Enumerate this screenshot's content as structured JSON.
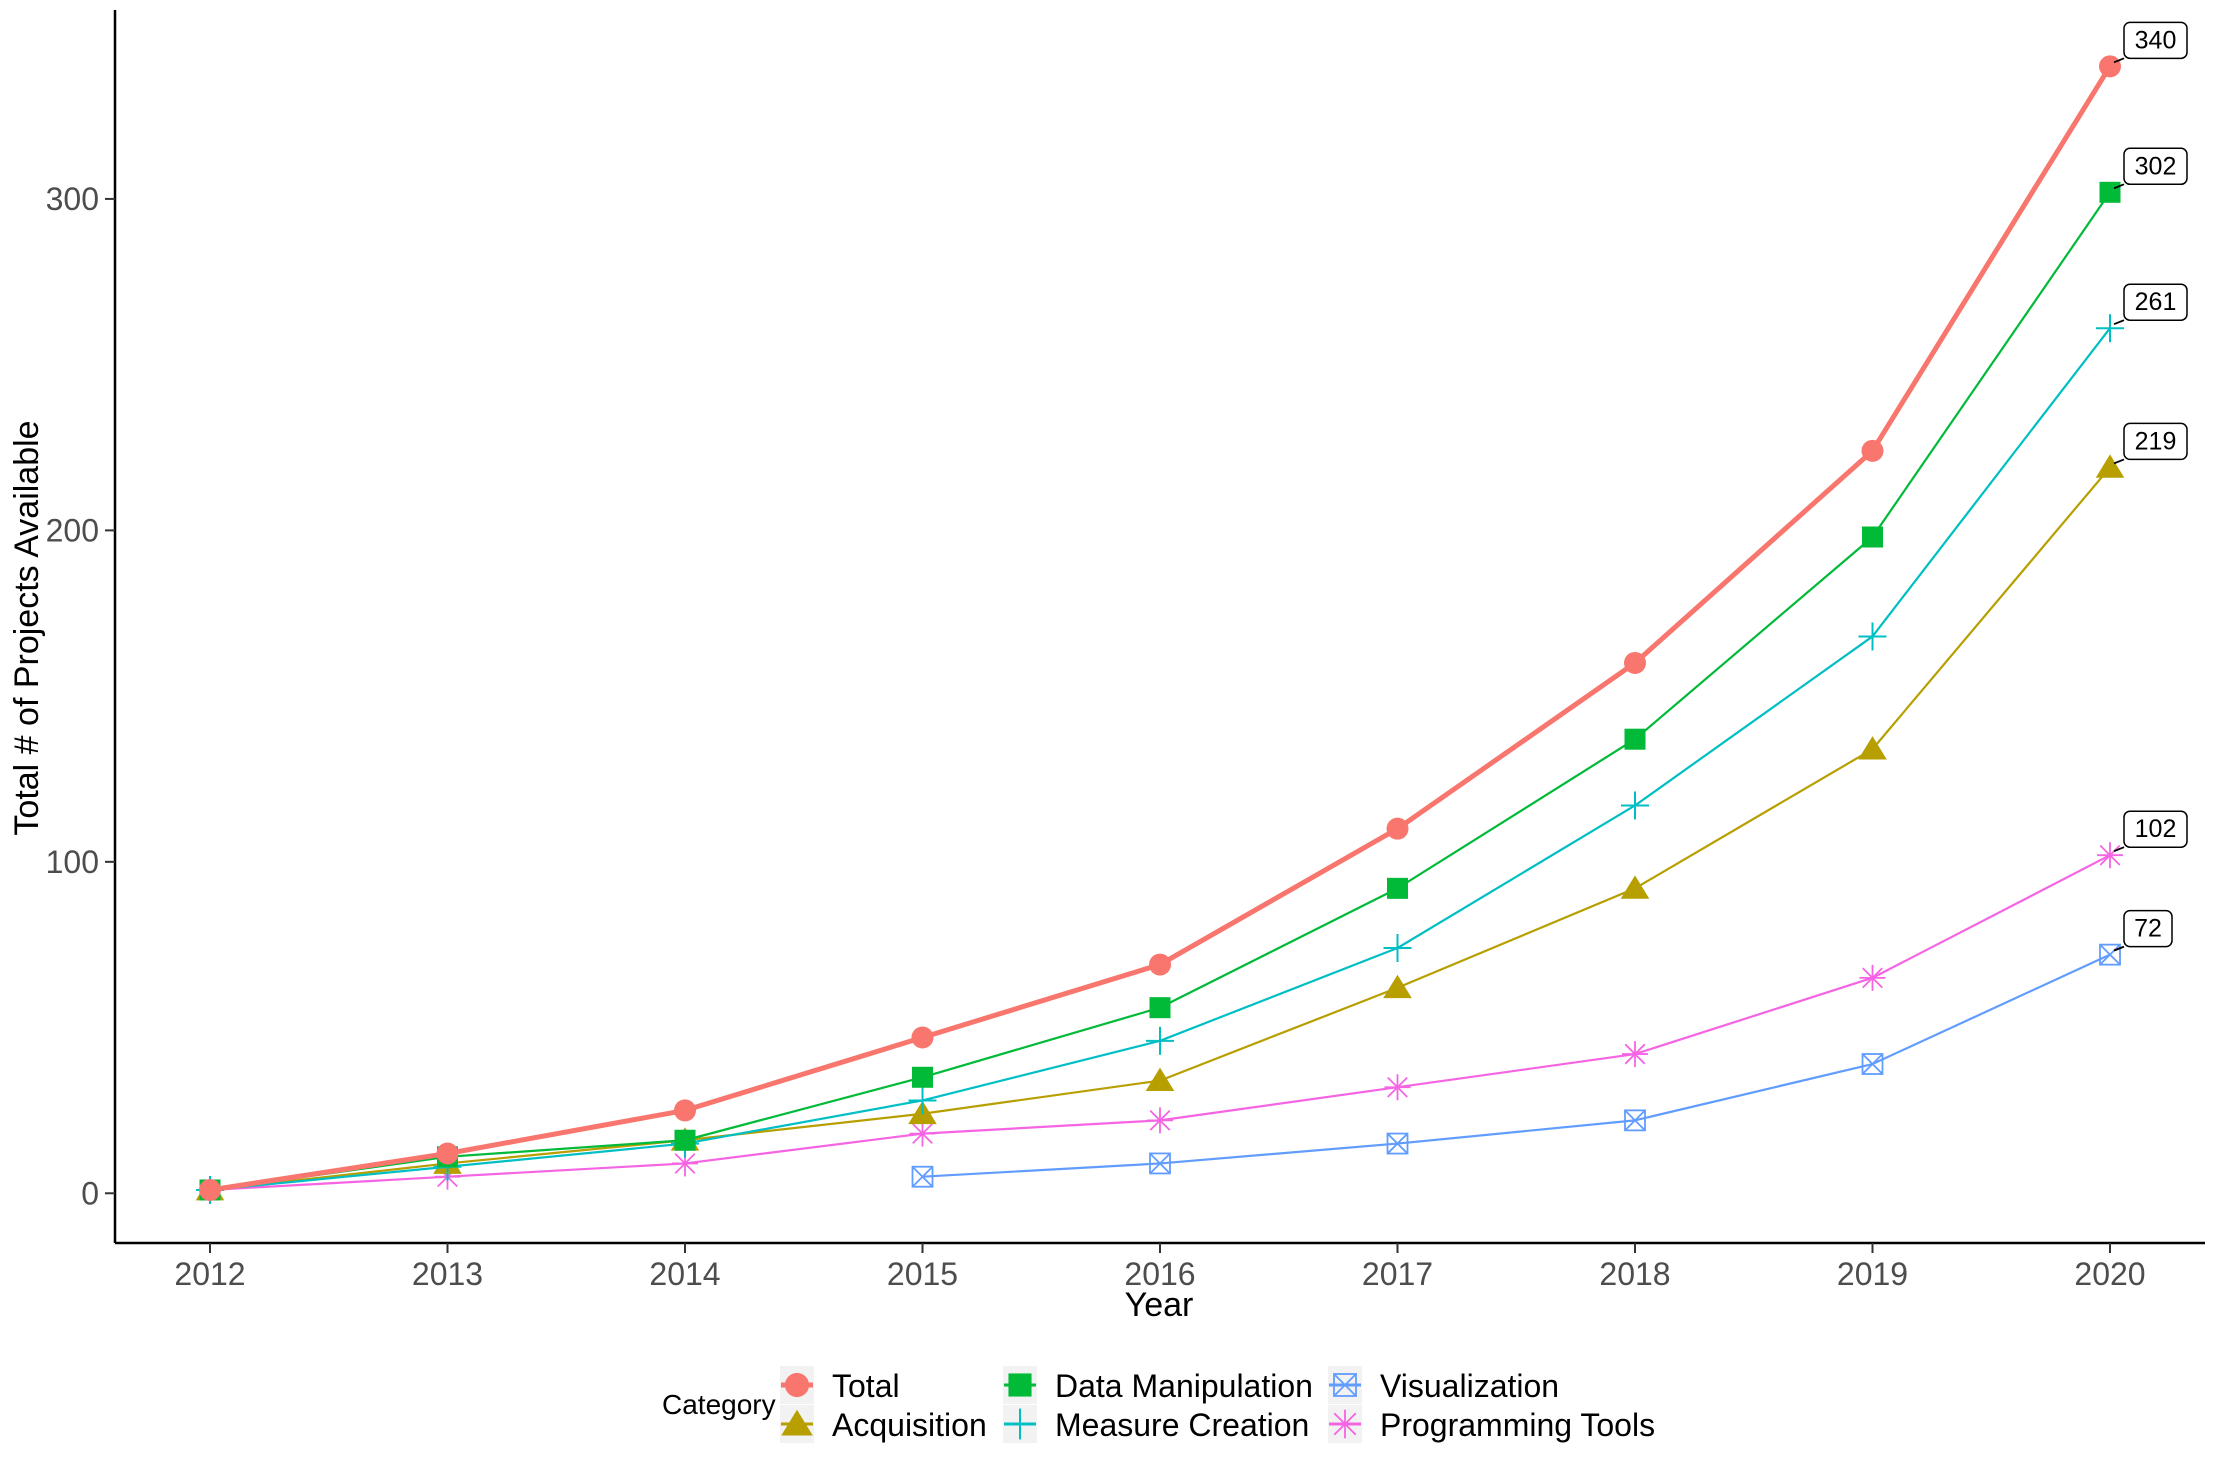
{
  "chart_data": {
    "type": "line",
    "title": "",
    "xlabel": "Year",
    "ylabel": "Total # of Projects Available",
    "x": [
      2012,
      2013,
      2014,
      2015,
      2016,
      2017,
      2018,
      2019,
      2020
    ],
    "x_ticks": [
      "2012",
      "2013",
      "2014",
      "2015",
      "2016",
      "2017",
      "2018",
      "2019",
      "2020"
    ],
    "y_ticks": [
      "0",
      "100",
      "200",
      "300"
    ],
    "xlim": [
      2011.6,
      2020.4
    ],
    "ylim": [
      -15,
      357
    ],
    "grid": false,
    "legend": {
      "title": "Category",
      "placement": "bottom"
    },
    "series": [
      {
        "name": "Total",
        "color": "#F8766D",
        "marker": "circle",
        "values": [
          1,
          12,
          25,
          47,
          69,
          110,
          160,
          224,
          340
        ],
        "end_label": "340"
      },
      {
        "name": "Acquisition",
        "color": "#B79F00",
        "marker": "triangle",
        "values": [
          1,
          9,
          16,
          24,
          34,
          62,
          92,
          134,
          219
        ],
        "end_label": "219"
      },
      {
        "name": "Data Manipulation",
        "color": "#00BA38",
        "marker": "square",
        "values": [
          1,
          11,
          16,
          35,
          56,
          92,
          137,
          198,
          302
        ],
        "end_label": "302"
      },
      {
        "name": "Measure Creation",
        "color": "#00BFC4",
        "marker": "plus",
        "values": [
          1,
          8,
          15,
          28,
          46,
          74,
          117,
          168,
          261
        ],
        "end_label": "261"
      },
      {
        "name": "Visualization",
        "color": "#619CFF",
        "marker": "square-x",
        "values": [
          null,
          null,
          null,
          5,
          9,
          15,
          22,
          39,
          72
        ],
        "end_label": "72"
      },
      {
        "name": "Programming Tools",
        "color": "#F564E3",
        "marker": "asterisk",
        "values": [
          1,
          5,
          9,
          18,
          22,
          32,
          42,
          65,
          102
        ],
        "end_label": "102"
      }
    ]
  }
}
